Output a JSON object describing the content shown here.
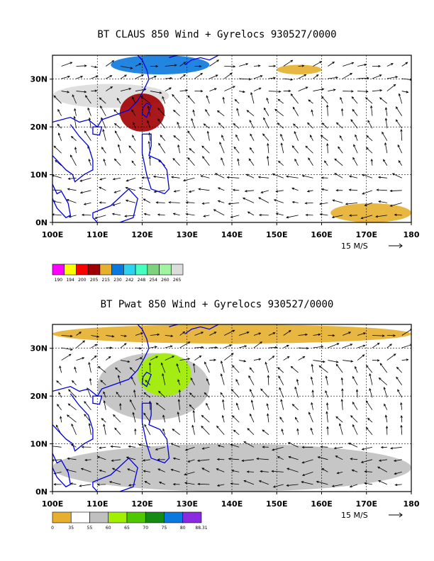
{
  "chart_data": [
    {
      "type": "heatmap",
      "title": "BT CLAUS 850 Wind + Gyrelocs 930527/0000",
      "x_ticks": [
        "100E",
        "110E",
        "120E",
        "130E",
        "140E",
        "150E",
        "160E",
        "170E",
        "180"
      ],
      "y_ticks": [
        "0N",
        "10N",
        "20N",
        "30N"
      ],
      "xlim": [
        100,
        180
      ],
      "ylim": [
        0,
        35
      ],
      "wind_reference": "15 M/S",
      "colorbar": {
        "labels": [
          "190",
          "194",
          "200",
          "205",
          "215",
          "230",
          "242",
          "248",
          "254",
          "260",
          "265"
        ],
        "colors": [
          "#ff00ff",
          "#ffff00",
          "#ff0000",
          "#a00000",
          "#e6af2d",
          "#0a78dc",
          "#2dd2f0",
          "#44ffc0",
          "#7dd27d",
          "#a0f5a0",
          "#dcdcdc"
        ]
      },
      "regions": [
        {
          "level": "cloud_warm",
          "color": "#dcdcdc",
          "lon": [
            100,
            126
          ],
          "lat": [
            24,
            29
          ]
        },
        {
          "level": "band_north",
          "color": "#0a78dc",
          "lon": [
            113,
            135
          ],
          "lat": [
            31,
            35
          ]
        },
        {
          "level": "band_north_right",
          "color": "#e6af2d",
          "lon": [
            150,
            160
          ],
          "lat": [
            31,
            33
          ]
        },
        {
          "level": "convective_core",
          "color": "#a00000",
          "lon": [
            115,
            125
          ],
          "lat": [
            19,
            27
          ]
        },
        {
          "level": "southern_cells",
          "color": "#e6af2d",
          "lon": [
            162,
            180
          ],
          "lat": [
            0,
            4
          ]
        }
      ],
      "grid": true
    },
    {
      "type": "heatmap",
      "title": "BT Pwat 850 Wind + Gyrelocs 930527/0000",
      "x_ticks": [
        "100E",
        "110E",
        "120E",
        "130E",
        "140E",
        "150E",
        "160E",
        "170E",
        "180"
      ],
      "y_ticks": [
        "0N",
        "10N",
        "20N",
        "30N"
      ],
      "xlim": [
        100,
        180
      ],
      "ylim": [
        0,
        35
      ],
      "wind_reference": "15 M/S",
      "colorbar": {
        "labels": [
          "0",
          "35",
          "55",
          "60",
          "65",
          "70",
          "75",
          "80",
          "88.31"
        ],
        "colors": [
          "#e6af2d",
          "#ffffff",
          "#c0c0c0",
          "#a0f000",
          "#50c800",
          "#148c14",
          "#0a78dc",
          "#8a2be2"
        ]
      },
      "regions": [
        {
          "level": "dry",
          "color": "#e6af2d",
          "lon": [
            100,
            180
          ],
          "lat": [
            31,
            35
          ]
        },
        {
          "level": "moist",
          "color": "#c0c0c0",
          "lon": [
            100,
            180
          ],
          "lat": [
            0,
            10
          ]
        },
        {
          "level": "moist_band",
          "color": "#c0c0c0",
          "lon": [
            110,
            135
          ],
          "lat": [
            15,
            29
          ]
        },
        {
          "level": "very_moist",
          "color": "#a0f000",
          "lon": [
            119,
            131
          ],
          "lat": [
            20,
            29
          ]
        }
      ],
      "grid": true
    }
  ]
}
